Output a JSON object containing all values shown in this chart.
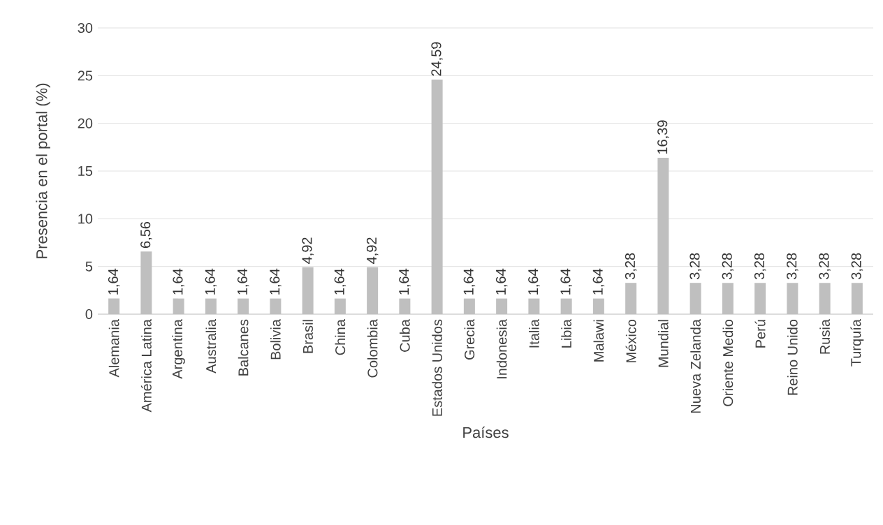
{
  "chart_data": {
    "type": "bar",
    "xlabel": "Países",
    "ylabel": "Presencia en el portal (%)",
    "categories": [
      "Alemania",
      "América Latina",
      "Argentina",
      "Australia",
      "Balcanes",
      "Bolivia",
      "Brasil",
      "China",
      "Colombia",
      "Cuba",
      "Estados Unidos",
      "Grecia",
      "Indonesia",
      "Italia",
      "Libia",
      "Malawi",
      "México",
      "Mundial",
      "Nueva Zelanda",
      "Oriente Medio",
      "Perú",
      "Reino Unido",
      "Rusia",
      "Turquía"
    ],
    "values": [
      1.64,
      6.56,
      1.64,
      1.64,
      1.64,
      1.64,
      4.92,
      1.64,
      4.92,
      1.64,
      24.59,
      1.64,
      1.64,
      1.64,
      1.64,
      1.64,
      3.28,
      16.39,
      3.28,
      3.28,
      3.28,
      3.28,
      3.28,
      3.28
    ],
    "value_labels": [
      "1,64",
      "6,56",
      "1,64",
      "1,64",
      "1,64",
      "1,64",
      "4,92",
      "1,64",
      "4,92",
      "1,64",
      "24,59",
      "1,64",
      "1,64",
      "1,64",
      "1,64",
      "1,64",
      "3,28",
      "16,39",
      "3,28",
      "3,28",
      "3,28",
      "3,28",
      "3,28",
      "3,28"
    ],
    "color": "#bfbfbf",
    "ylim": [
      0,
      30
    ],
    "yticks": [
      0,
      5,
      10,
      15,
      20,
      25,
      30
    ],
    "grid": "y"
  }
}
